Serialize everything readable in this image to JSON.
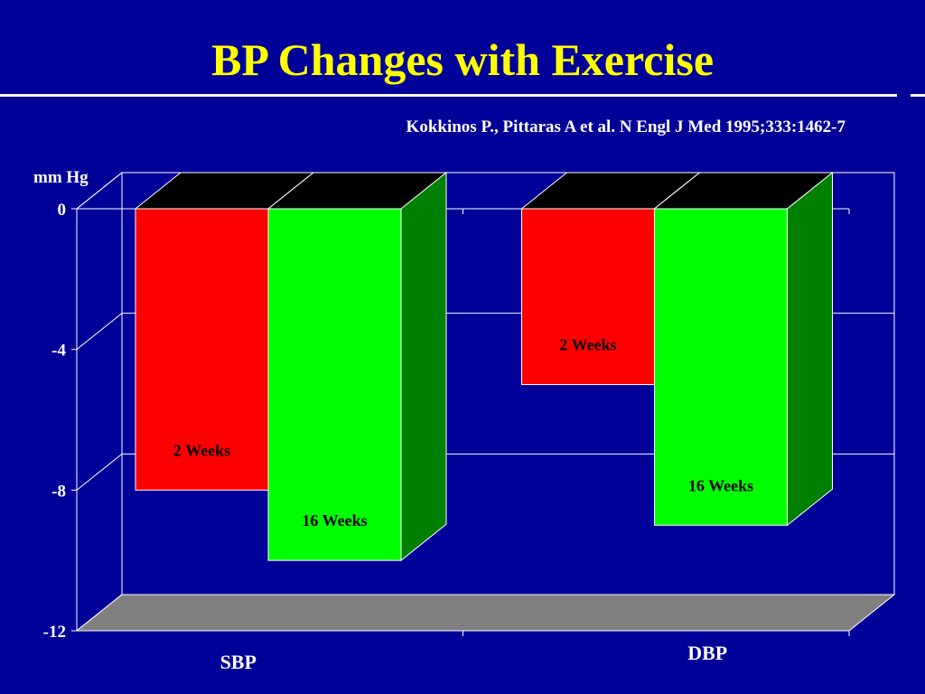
{
  "slide": {
    "title": "BP Changes with Exercise",
    "citation": "Kokkinos P., Pittaras A et al.  N Engl J Med 1995;333:1462-7"
  },
  "colors": {
    "background": "#000099",
    "title": "#ffff00",
    "two_weeks": "#ff0000",
    "sixteen_weeks": "#00ff00",
    "sixteen_weeks_side": "#008000",
    "bar_top": "#000000",
    "floor": "#808080"
  },
  "chart_data": {
    "type": "bar",
    "title": "BP Changes with Exercise",
    "ylabel": "mm Hg",
    "xlabel": "",
    "categories": [
      "SBP",
      "DBP"
    ],
    "series": [
      {
        "name": "2 Weeks",
        "values": [
          -8,
          -5
        ]
      },
      {
        "name": "16 Weeks",
        "values": [
          -10,
          -9
        ]
      }
    ],
    "ylim": [
      -12,
      0
    ],
    "yticks": [
      0,
      -4,
      -8,
      -12
    ],
    "ytick_labels": [
      "0",
      "-4",
      "-8",
      "-12"
    ],
    "grid": true,
    "legend": "none",
    "projection": "3d"
  }
}
